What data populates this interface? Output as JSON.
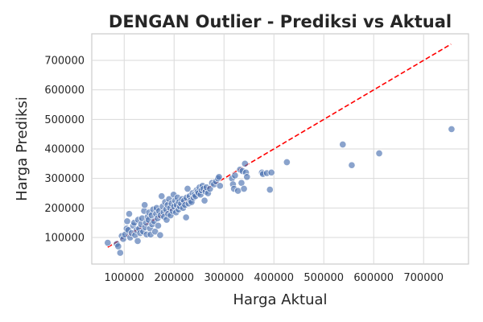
{
  "chart_data": {
    "type": "scatter",
    "title": "DENGAN Outlier - Prediksi vs Aktual",
    "xlabel": "Harga Aktual",
    "ylabel": "Harga Prediksi",
    "xlim": [
      35000,
      790000
    ],
    "ylim": [
      10000,
      790000
    ],
    "xticks": [
      100000,
      200000,
      300000,
      400000,
      500000,
      600000,
      700000
    ],
    "yticks": [
      100000,
      200000,
      300000,
      400000,
      500000,
      600000,
      700000
    ],
    "grid": true,
    "reference_line": {
      "style": "dashed",
      "color": "#ff0000",
      "from": [
        67000,
        67000
      ],
      "to": [
        755000,
        755000
      ]
    },
    "point_color": "#4c72b0",
    "points": [
      [
        67000,
        82000
      ],
      [
        85000,
        78000
      ],
      [
        88000,
        70000
      ],
      [
        92000,
        48000
      ],
      [
        95000,
        105000
      ],
      [
        98000,
        95000
      ],
      [
        102000,
        110000
      ],
      [
        105000,
        130000
      ],
      [
        106000,
        155000
      ],
      [
        108000,
        125000
      ],
      [
        110000,
        180000
      ],
      [
        112000,
        100000
      ],
      [
        115000,
        115000
      ],
      [
        118000,
        140000
      ],
      [
        120000,
        150000
      ],
      [
        122000,
        108000
      ],
      [
        125000,
        125000
      ],
      [
        127000,
        88000
      ],
      [
        128000,
        160000
      ],
      [
        130000,
        130000
      ],
      [
        132000,
        115000
      ],
      [
        134000,
        145000
      ],
      [
        136000,
        165000
      ],
      [
        138000,
        120000
      ],
      [
        140000,
        190000
      ],
      [
        141000,
        210000
      ],
      [
        142000,
        135000
      ],
      [
        144000,
        150000
      ],
      [
        145000,
        110000
      ],
      [
        147000,
        170000
      ],
      [
        149000,
        160000
      ],
      [
        150000,
        185000
      ],
      [
        152000,
        130000
      ],
      [
        153000,
        110000
      ],
      [
        155000,
        175000
      ],
      [
        156000,
        145000
      ],
      [
        158000,
        195000
      ],
      [
        160000,
        155000
      ],
      [
        162000,
        120000
      ],
      [
        164000,
        180000
      ],
      [
        165000,
        200000
      ],
      [
        167000,
        165000
      ],
      [
        168000,
        140000
      ],
      [
        170000,
        190000
      ],
      [
        172000,
        108000
      ],
      [
        173000,
        175000
      ],
      [
        175000,
        240000
      ],
      [
        177000,
        205000
      ],
      [
        179000,
        185000
      ],
      [
        180000,
        170000
      ],
      [
        182000,
        220000
      ],
      [
        184000,
        195000
      ],
      [
        185000,
        160000
      ],
      [
        187000,
        210000
      ],
      [
        188000,
        180000
      ],
      [
        190000,
        230000
      ],
      [
        192000,
        200000
      ],
      [
        193000,
        175000
      ],
      [
        195000,
        215000
      ],
      [
        197000,
        190000
      ],
      [
        199000,
        245000
      ],
      [
        200000,
        205000
      ],
      [
        202000,
        225000
      ],
      [
        204000,
        185000
      ],
      [
        205000,
        210000
      ],
      [
        207000,
        235000
      ],
      [
        209000,
        195000
      ],
      [
        210000,
        220000
      ],
      [
        212000,
        205000
      ],
      [
        214000,
        215000
      ],
      [
        216000,
        230000
      ],
      [
        218000,
        200000
      ],
      [
        220000,
        225000
      ],
      [
        222000,
        210000
      ],
      [
        224000,
        168000
      ],
      [
        225000,
        235000
      ],
      [
        227000,
        265000
      ],
      [
        229000,
        215000
      ],
      [
        231000,
        240000
      ],
      [
        233000,
        225000
      ],
      [
        235000,
        220000
      ],
      [
        237000,
        250000
      ],
      [
        239000,
        235000
      ],
      [
        241000,
        245000
      ],
      [
        243000,
        240000
      ],
      [
        245000,
        260000
      ],
      [
        247000,
        255000
      ],
      [
        249000,
        250000
      ],
      [
        251000,
        270000
      ],
      [
        253000,
        245000
      ],
      [
        255000,
        260000
      ],
      [
        257000,
        275000
      ],
      [
        259000,
        265000
      ],
      [
        261000,
        225000
      ],
      [
        263000,
        255000
      ],
      [
        265000,
        270000
      ],
      [
        268000,
        250000
      ],
      [
        272000,
        265000
      ],
      [
        276000,
        285000
      ],
      [
        280000,
        280000
      ],
      [
        284000,
        290000
      ],
      [
        288000,
        300000
      ],
      [
        290000,
        305000
      ],
      [
        292000,
        275000
      ],
      [
        316000,
        300000
      ],
      [
        318000,
        280000
      ],
      [
        320000,
        265000
      ],
      [
        322000,
        310000
      ],
      [
        328000,
        258000
      ],
      [
        332000,
        330000
      ],
      [
        335000,
        285000
      ],
      [
        337000,
        325000
      ],
      [
        340000,
        265000
      ],
      [
        342000,
        350000
      ],
      [
        344000,
        320000
      ],
      [
        346000,
        305000
      ],
      [
        376000,
        320000
      ],
      [
        378000,
        315000
      ],
      [
        386000,
        318000
      ],
      [
        392000,
        262000
      ],
      [
        395000,
        320000
      ],
      [
        426000,
        355000
      ],
      [
        538000,
        415000
      ],
      [
        556000,
        345000
      ],
      [
        611000,
        385000
      ],
      [
        756000,
        467000
      ]
    ]
  }
}
